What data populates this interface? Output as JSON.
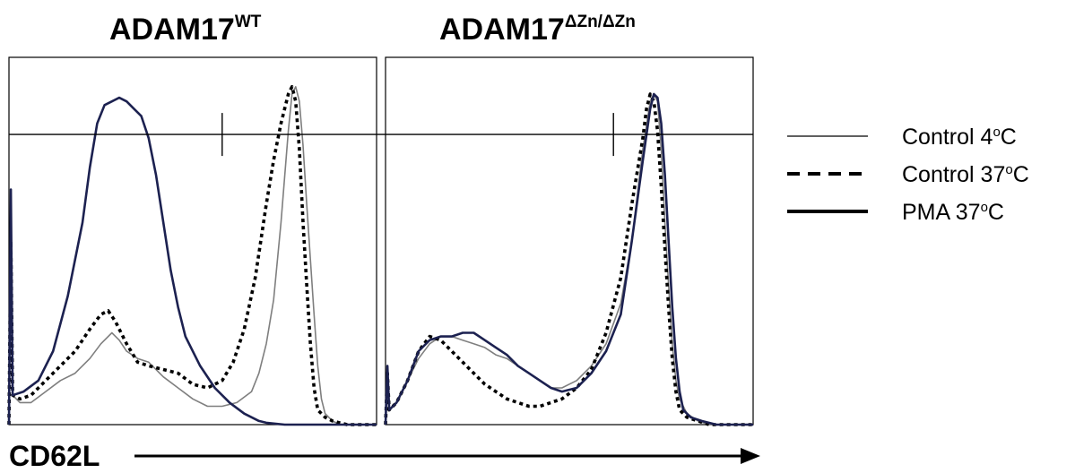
{
  "chart_data": [
    {
      "type": "line",
      "title_main": "ADAM17",
      "title_sup": "WT",
      "xlabel": "CD62L",
      "ylabel": "",
      "xlim": [
        0,
        100
      ],
      "ylim": [
        0,
        100
      ],
      "gate": {
        "y": 79,
        "marker_x": 58
      },
      "series": [
        {
          "key": "control_4c",
          "style": "thin",
          "color": "#7f7f7f",
          "points": [
            [
              0,
              0
            ],
            [
              0.5,
              55
            ],
            [
              1,
              8
            ],
            [
              3,
              6
            ],
            [
              6,
              6
            ],
            [
              10,
              9
            ],
            [
              14,
              12
            ],
            [
              18,
              14
            ],
            [
              22,
              18
            ],
            [
              25,
              22
            ],
            [
              28,
              25
            ],
            [
              30,
              23
            ],
            [
              32,
              20
            ],
            [
              35,
              18
            ],
            [
              38,
              17
            ],
            [
              42,
              13
            ],
            [
              46,
              10
            ],
            [
              50,
              7
            ],
            [
              54,
              5
            ],
            [
              58,
              5
            ],
            [
              62,
              6
            ],
            [
              66,
              9
            ],
            [
              68,
              14
            ],
            [
              70,
              22
            ],
            [
              72,
              34
            ],
            [
              74,
              55
            ],
            [
              76,
              80
            ],
            [
              77,
              90
            ],
            [
              78,
              92
            ],
            [
              79,
              88
            ],
            [
              80,
              76
            ],
            [
              81,
              60
            ],
            [
              82,
              45
            ],
            [
              83,
              30
            ],
            [
              84,
              16
            ],
            [
              85,
              7
            ],
            [
              86,
              3
            ],
            [
              88,
              1
            ],
            [
              90,
              0
            ],
            [
              100,
              0
            ]
          ]
        },
        {
          "key": "control_37c",
          "style": "dotted",
          "color": "#000000",
          "points": [
            [
              0,
              0
            ],
            [
              0.5,
              50
            ],
            [
              1,
              8
            ],
            [
              3,
              7
            ],
            [
              6,
              8
            ],
            [
              10,
              12
            ],
            [
              14,
              16
            ],
            [
              18,
              20
            ],
            [
              22,
              26
            ],
            [
              25,
              30
            ],
            [
              27,
              31
            ],
            [
              29,
              28
            ],
            [
              32,
              22
            ],
            [
              35,
              17
            ],
            [
              38,
              16
            ],
            [
              42,
              15
            ],
            [
              46,
              14
            ],
            [
              50,
              11
            ],
            [
              54,
              10
            ],
            [
              58,
              12
            ],
            [
              61,
              17
            ],
            [
              64,
              26
            ],
            [
              67,
              40
            ],
            [
              70,
              60
            ],
            [
              72,
              72
            ],
            [
              74,
              82
            ],
            [
              76,
              90
            ],
            [
              77,
              92
            ],
            [
              78,
              88
            ],
            [
              79,
              75
            ],
            [
              80,
              55
            ],
            [
              81,
              38
            ],
            [
              82,
              22
            ],
            [
              83,
              10
            ],
            [
              84,
              4
            ],
            [
              86,
              2
            ],
            [
              88,
              1
            ],
            [
              92,
              0
            ],
            [
              100,
              0
            ]
          ]
        },
        {
          "key": "pma_37c",
          "style": "thick",
          "color": "#1c2150",
          "points": [
            [
              0,
              0
            ],
            [
              0.5,
              64
            ],
            [
              1,
              8
            ],
            [
              4,
              9
            ],
            [
              8,
              12
            ],
            [
              12,
              20
            ],
            [
              16,
              35
            ],
            [
              20,
              55
            ],
            [
              22,
              70
            ],
            [
              24,
              82
            ],
            [
              26,
              87
            ],
            [
              28,
              88
            ],
            [
              30,
              89
            ],
            [
              32,
              88
            ],
            [
              34,
              86
            ],
            [
              36,
              84
            ],
            [
              38,
              78
            ],
            [
              40,
              68
            ],
            [
              42,
              55
            ],
            [
              44,
              42
            ],
            [
              46,
              32
            ],
            [
              48,
              24
            ],
            [
              52,
              16
            ],
            [
              56,
              10
            ],
            [
              60,
              6
            ],
            [
              64,
              3
            ],
            [
              68,
              1
            ],
            [
              70,
              0.5
            ],
            [
              75,
              0
            ],
            [
              100,
              0
            ]
          ]
        }
      ]
    },
    {
      "type": "line",
      "title_main": "ADAM17",
      "title_sup": "ΔZn/ΔZn",
      "xlabel": "",
      "ylabel": "",
      "xlim": [
        0,
        100
      ],
      "ylim": [
        0,
        100
      ],
      "gate": {
        "y": 79,
        "marker_x": 62
      },
      "series": [
        {
          "key": "control_4c",
          "style": "thin",
          "color": "#7f7f7f",
          "points": [
            [
              0,
              0
            ],
            [
              0.5,
              15
            ],
            [
              1,
              4
            ],
            [
              3,
              6
            ],
            [
              6,
              12
            ],
            [
              9,
              18
            ],
            [
              12,
              22
            ],
            [
              15,
              24
            ],
            [
              18,
              24
            ],
            [
              21,
              23
            ],
            [
              24,
              22
            ],
            [
              27,
              21
            ],
            [
              30,
              19
            ],
            [
              33,
              18
            ],
            [
              36,
              16
            ],
            [
              39,
              14
            ],
            [
              42,
              12
            ],
            [
              45,
              10
            ],
            [
              48,
              10
            ],
            [
              52,
              12
            ],
            [
              56,
              16
            ],
            [
              60,
              22
            ],
            [
              64,
              33
            ],
            [
              67,
              50
            ],
            [
              70,
              75
            ],
            [
              72,
              88
            ],
            [
              73,
              90
            ],
            [
              74,
              88
            ],
            [
              75,
              75
            ],
            [
              76,
              55
            ],
            [
              77,
              38
            ],
            [
              78,
              22
            ],
            [
              79,
              12
            ],
            [
              80,
              7
            ],
            [
              82,
              3
            ],
            [
              85,
              1
            ],
            [
              88,
              0
            ],
            [
              100,
              0
            ]
          ]
        },
        {
          "key": "control_37c",
          "style": "dotted",
          "color": "#000000",
          "points": [
            [
              0,
              0
            ],
            [
              0.5,
              14
            ],
            [
              1,
              4
            ],
            [
              3,
              6
            ],
            [
              6,
              12
            ],
            [
              9,
              20
            ],
            [
              12,
              24
            ],
            [
              15,
              23
            ],
            [
              18,
              20
            ],
            [
              21,
              17
            ],
            [
              24,
              14
            ],
            [
              27,
              11
            ],
            [
              30,
              9
            ],
            [
              33,
              7
            ],
            [
              36,
              6
            ],
            [
              39,
              5
            ],
            [
              42,
              5
            ],
            [
              45,
              6
            ],
            [
              48,
              7
            ],
            [
              52,
              10
            ],
            [
              56,
              15
            ],
            [
              60,
              25
            ],
            [
              64,
              40
            ],
            [
              67,
              60
            ],
            [
              70,
              78
            ],
            [
              71,
              86
            ],
            [
              72,
              90
            ],
            [
              73,
              88
            ],
            [
              74,
              80
            ],
            [
              75,
              65
            ],
            [
              76,
              48
            ],
            [
              77,
              32
            ],
            [
              78,
              18
            ],
            [
              79,
              9
            ],
            [
              80,
              4
            ],
            [
              82,
              2
            ],
            [
              85,
              1
            ],
            [
              88,
              0
            ],
            [
              100,
              0
            ]
          ]
        },
        {
          "key": "pma_37c",
          "style": "thick",
          "color": "#1c2150",
          "points": [
            [
              0,
              0
            ],
            [
              0.5,
              16
            ],
            [
              1,
              4
            ],
            [
              3,
              6
            ],
            [
              6,
              12
            ],
            [
              9,
              20
            ],
            [
              12,
              23
            ],
            [
              15,
              24
            ],
            [
              18,
              24
            ],
            [
              21,
              25
            ],
            [
              24,
              25
            ],
            [
              27,
              23
            ],
            [
              30,
              21
            ],
            [
              33,
              19
            ],
            [
              36,
              16
            ],
            [
              39,
              14
            ],
            [
              42,
              12
            ],
            [
              45,
              10
            ],
            [
              48,
              9
            ],
            [
              52,
              10
            ],
            [
              56,
              14
            ],
            [
              60,
              20
            ],
            [
              64,
              30
            ],
            [
              67,
              50
            ],
            [
              70,
              72
            ],
            [
              72,
              86
            ],
            [
              73,
              90
            ],
            [
              74,
              89
            ],
            [
              75,
              82
            ],
            [
              76,
              68
            ],
            [
              77,
              50
            ],
            [
              78,
              32
            ],
            [
              79,
              18
            ],
            [
              80,
              9
            ],
            [
              81,
              4
            ],
            [
              83,
              2
            ],
            [
              86,
              1
            ],
            [
              90,
              0
            ],
            [
              100,
              0
            ]
          ]
        }
      ]
    }
  ],
  "legend": {
    "items": [
      {
        "key": "control_4c",
        "style": "thin",
        "label_main": "Control 4",
        "label_sup": "o",
        "label_end": "C"
      },
      {
        "key": "control_37c",
        "style": "dashed",
        "label_main": "Control 37",
        "label_sup": "o",
        "label_end": "C"
      },
      {
        "key": "pma_37c",
        "style": "thick",
        "label_main": "PMA 37",
        "label_sup": "o",
        "label_end": "C"
      }
    ]
  }
}
